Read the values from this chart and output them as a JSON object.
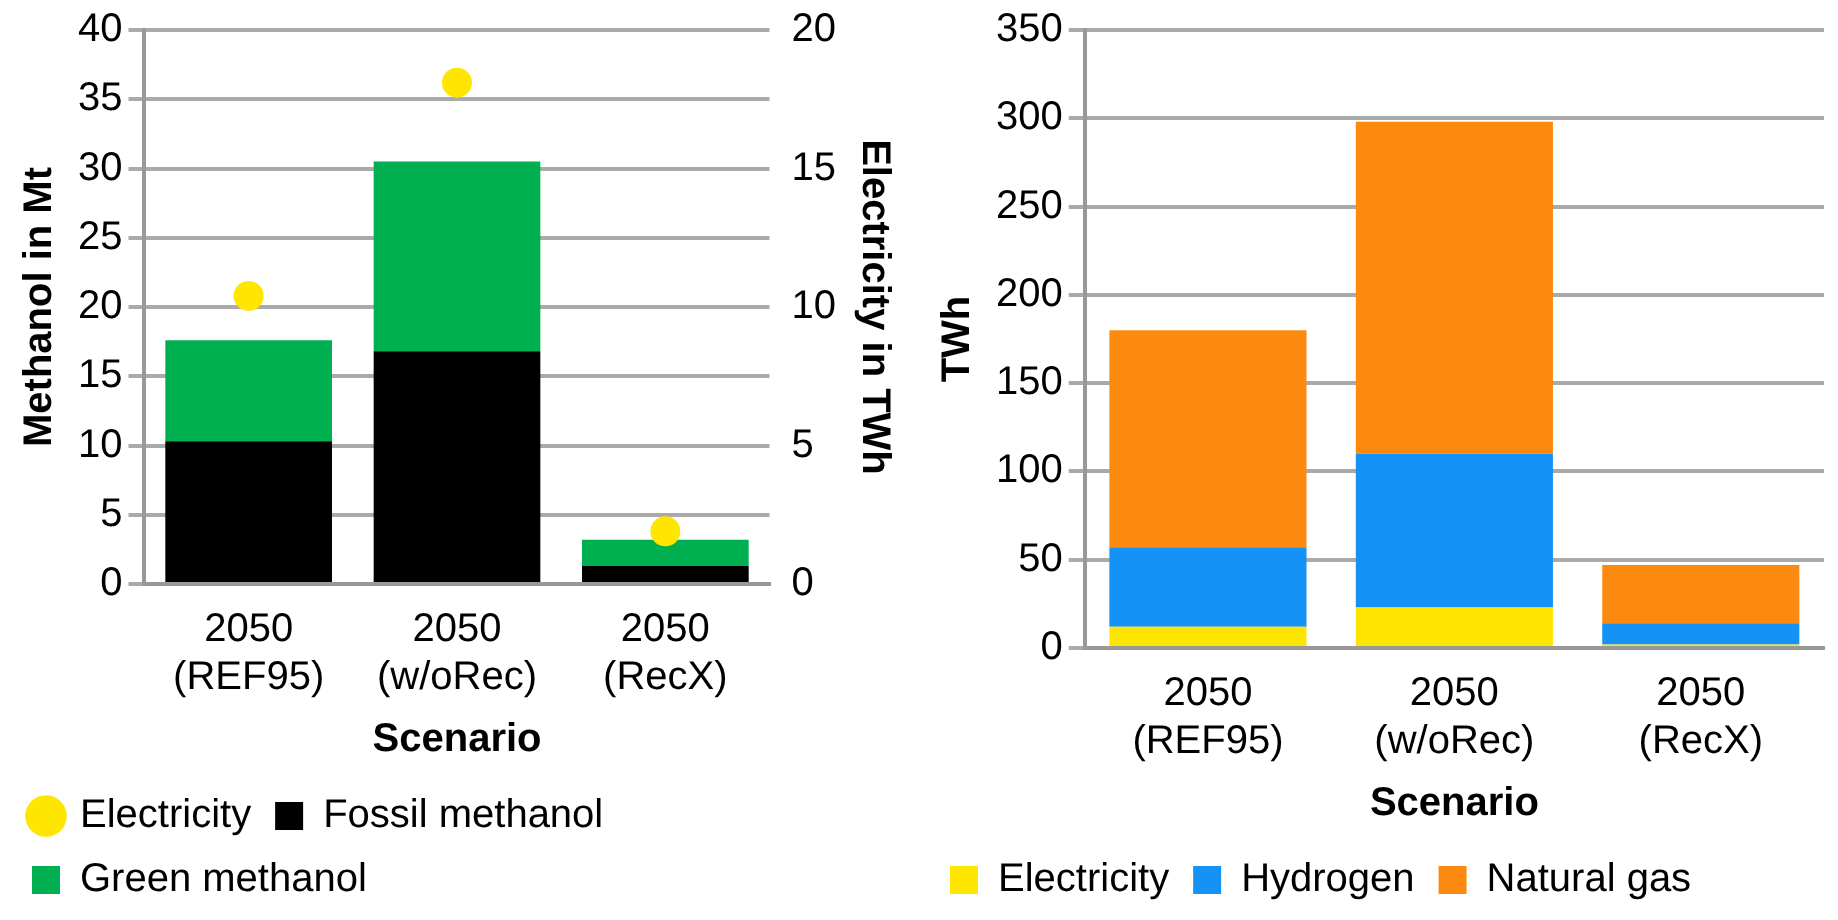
{
  "chart_data": [
    {
      "type": "bar",
      "stacked": true,
      "categories": [
        "2050 (REF95)",
        "2050 (w/oRec)",
        "2050 (RecX)"
      ],
      "xlabel": "Scenario",
      "ylabel": "Methanol in Mt",
      "y2label": "Electricity in TWh",
      "ylim": [
        0,
        40
      ],
      "yticks": [
        0,
        5,
        10,
        15,
        20,
        25,
        30,
        35,
        40
      ],
      "y2lim": [
        0,
        20
      ],
      "y2ticks": [
        0,
        5,
        10,
        15,
        20
      ],
      "grid": "y",
      "legend": "bottom",
      "series": [
        {
          "name": "Fossil methanol",
          "color": "#000000",
          "values": [
            10.3,
            16.8,
            1.3
          ]
        },
        {
          "name": "Green methanol",
          "color": "#00b050",
          "values": [
            7.3,
            13.7,
            1.9
          ]
        },
        {
          "name": "Electricity",
          "type": "scatter",
          "axis": "y2",
          "marker": "circle",
          "color": "#ffe600",
          "values": [
            10.4,
            18.1,
            1.9
          ]
        }
      ]
    },
    {
      "type": "bar",
      "stacked": true,
      "categories": [
        "2050 (REF95)",
        "2050 (w/oRec)",
        "2050 (RecX)"
      ],
      "xlabel": "Scenario",
      "ylabel": "TWh",
      "ylim": [
        0,
        350
      ],
      "yticks": [
        0,
        50,
        100,
        150,
        200,
        250,
        300,
        350
      ],
      "grid": "y",
      "legend": "bottom",
      "series": [
        {
          "name": "Electricity",
          "color": "#ffe600",
          "values": [
            12,
            23,
            2
          ]
        },
        {
          "name": "Hydrogen",
          "color": "#1492f5",
          "values": [
            45,
            87,
            12
          ]
        },
        {
          "name": "Natural gas",
          "color": "#fd8a10",
          "values": [
            123,
            188,
            33
          ]
        }
      ]
    }
  ]
}
